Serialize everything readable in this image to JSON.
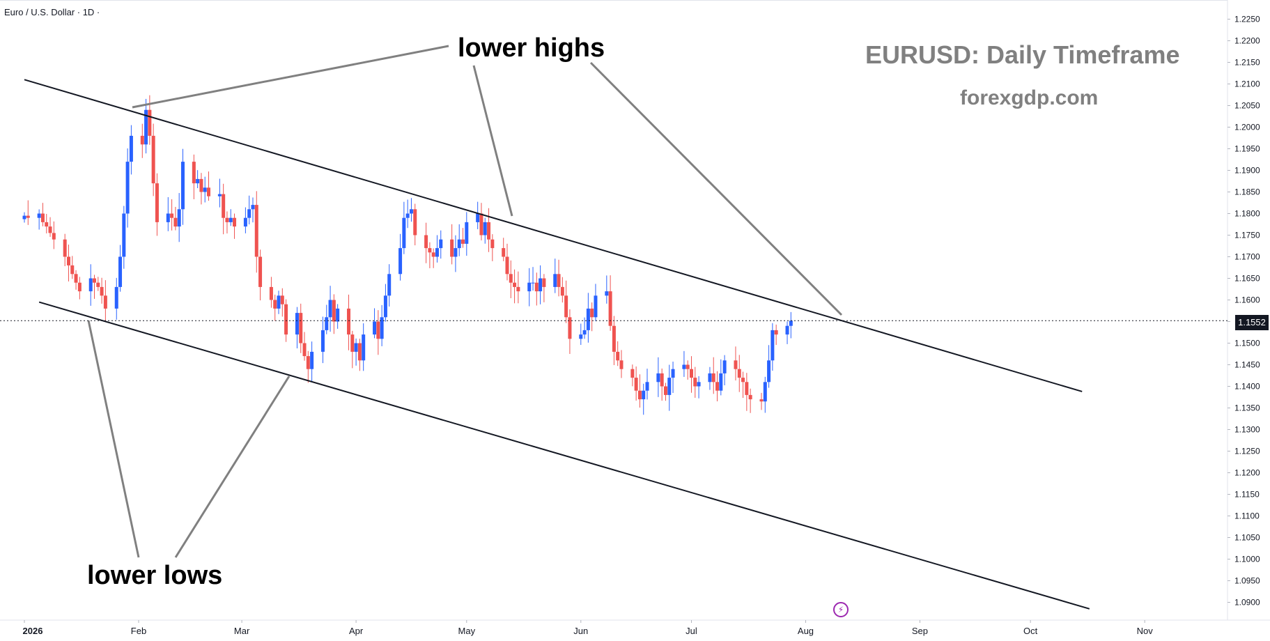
{
  "header": {
    "symbol": "Euro / U.S. Dollar · 1D ·"
  },
  "watermark": {
    "title": "EURUSD: Daily Timeframe",
    "site": "forexgdp.com"
  },
  "annotations": {
    "highs": "lower highs",
    "lows": "lower lows"
  },
  "current_price_label": "1.1552",
  "colors": {
    "up": "#2962ff",
    "down": "#ef5350",
    "line": "#131722",
    "pointer": "#808080"
  },
  "icons": {
    "badge": "lightning-icon"
  },
  "chart_data": {
    "type": "candlestick",
    "instrument": "Euro / U.S. Dollar",
    "timeframe": "1D",
    "ylim": [
      1.0875,
      1.2275
    ],
    "y_ticks": [
      "1.2250",
      "1.2200",
      "1.2150",
      "1.2100",
      "1.2050",
      "1.2000",
      "1.1950",
      "1.1900",
      "1.1850",
      "1.1800",
      "1.1750",
      "1.1700",
      "1.1650",
      "1.1600",
      "1.1550",
      "1.1500",
      "1.1450",
      "1.1400",
      "1.1350",
      "1.1300",
      "1.1250",
      "1.1200",
      "1.1150",
      "1.1100",
      "1.1050",
      "1.1000",
      "1.0950",
      "1.0900"
    ],
    "x_labels": [
      {
        "label": "2026",
        "date": "2026-01-01",
        "bold": true
      },
      {
        "label": "Feb",
        "date": "2026-02-01"
      },
      {
        "label": "Mar",
        "date": "2026-03-01"
      },
      {
        "label": "Apr",
        "date": "2026-04-01"
      },
      {
        "label": "May",
        "date": "2026-05-01"
      },
      {
        "label": "Jun",
        "date": "2026-06-01"
      },
      {
        "label": "Jul",
        "date": "2026-07-01"
      },
      {
        "label": "Aug",
        "date": "2026-08-01"
      },
      {
        "label": "Sep",
        "date": "2026-09-01"
      },
      {
        "label": "Oct",
        "date": "2026-10-01"
      },
      {
        "label": "Nov",
        "date": "2026-11-01"
      }
    ],
    "current_price": 1.1552,
    "trendlines": [
      {
        "name": "upper",
        "from": [
          "2026-01-01",
          1.211
        ],
        "to": [
          "2026-10-15",
          1.1388
        ]
      },
      {
        "name": "lower",
        "from": [
          "2026-01-05",
          1.1595
        ],
        "to": [
          "2026-10-17",
          1.0885
        ]
      }
    ],
    "closes_start_date": "2026-01-01",
    "closes": [
      1.1795,
      1.179,
      1.18,
      1.178,
      1.177,
      1.1755,
      1.174,
      1.17,
      1.168,
      1.166,
      1.164,
      1.162,
      1.165,
      1.164,
      1.163,
      1.161,
      1.158,
      1.163,
      1.17,
      1.18,
      1.192,
      1.198,
      1.196,
      1.204,
      1.198,
      1.187,
      1.178,
      1.18,
      1.179,
      1.177,
      1.181,
      1.192,
      1.187,
      1.188,
      1.185,
      1.186,
      1.184,
      1.1845,
      1.179,
      1.178,
      1.179,
      1.177,
      1.179,
      1.181,
      1.182,
      1.17,
      1.163,
      1.16,
      1.158,
      1.161,
      1.159,
      1.152,
      1.157,
      1.15,
      1.147,
      1.144,
      1.148,
      1.153,
      1.156,
      1.16,
      1.155,
      1.158,
      1.152,
      1.148,
      1.15,
      1.146,
      1.152,
      1.155,
      1.151,
      1.156,
      1.161,
      1.166,
      1.172,
      1.179,
      1.18,
      1.181,
      1.175,
      1.172,
      1.171,
      1.17,
      1.172,
      1.174,
      1.17,
      1.172,
      1.174,
      1.173,
      1.178,
      1.18,
      1.175,
      1.178,
      1.174,
      1.172,
      1.17,
      1.166,
      1.164,
      1.163,
      1.162,
      1.164,
      1.164,
      1.162,
      1.165,
      1.163,
      1.166,
      1.163,
      1.161,
      1.156,
      1.151,
      1.152,
      1.153,
      1.158,
      1.156,
      1.161,
      1.162,
      1.154,
      1.148,
      1.146,
      1.144,
      1.142,
      1.139,
      1.137,
      1.139,
      1.141,
      1.143,
      1.14,
      1.138,
      1.142,
      1.144,
      1.145,
      1.144,
      1.142,
      1.14,
      1.141,
      1.143,
      1.141,
      1.139,
      1.143,
      1.146,
      1.144,
      1.142,
      1.141,
      1.138,
      1.137,
      1.1365,
      1.141,
      1.146,
      1.153,
      1.152,
      1.154,
      1.1552
    ]
  }
}
